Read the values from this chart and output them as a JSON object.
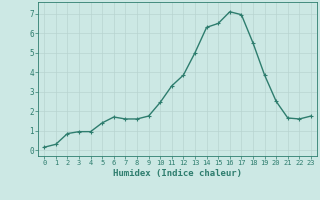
{
  "x": [
    0,
    1,
    2,
    3,
    4,
    5,
    6,
    7,
    8,
    9,
    10,
    11,
    12,
    13,
    14,
    15,
    16,
    17,
    18,
    19,
    20,
    21,
    22,
    23
  ],
  "y": [
    0.15,
    0.3,
    0.85,
    0.95,
    0.95,
    1.4,
    1.7,
    1.6,
    1.6,
    1.75,
    2.45,
    3.3,
    3.85,
    5.0,
    6.3,
    6.5,
    7.1,
    6.95,
    5.5,
    3.85,
    2.5,
    1.65,
    1.6,
    1.75
  ],
  "line_color": "#2e7d6e",
  "marker": "+",
  "marker_size": 3,
  "background_color": "#cce8e4",
  "grid_color": "#b8d4d0",
  "axis_color": "#2e7d6e",
  "tick_color": "#2e7d6e",
  "xlabel": "Humidex (Indice chaleur)",
  "xlabel_fontsize": 6.5,
  "xlabel_color": "#2e7d6e",
  "ylabel_ticks": [
    0,
    1,
    2,
    3,
    4,
    5,
    6,
    7
  ],
  "xlim": [
    -0.5,
    23.5
  ],
  "ylim": [
    -0.3,
    7.6
  ],
  "xtick_labels": [
    "0",
    "1",
    "2",
    "3",
    "4",
    "5",
    "6",
    "7",
    "8",
    "9",
    "10",
    "11",
    "12",
    "13",
    "14",
    "15",
    "16",
    "17",
    "18",
    "19",
    "20",
    "21",
    "22",
    "23"
  ],
  "line_width": 1.0,
  "tick_fontsize": 5.0,
  "ytick_fontsize": 5.5
}
